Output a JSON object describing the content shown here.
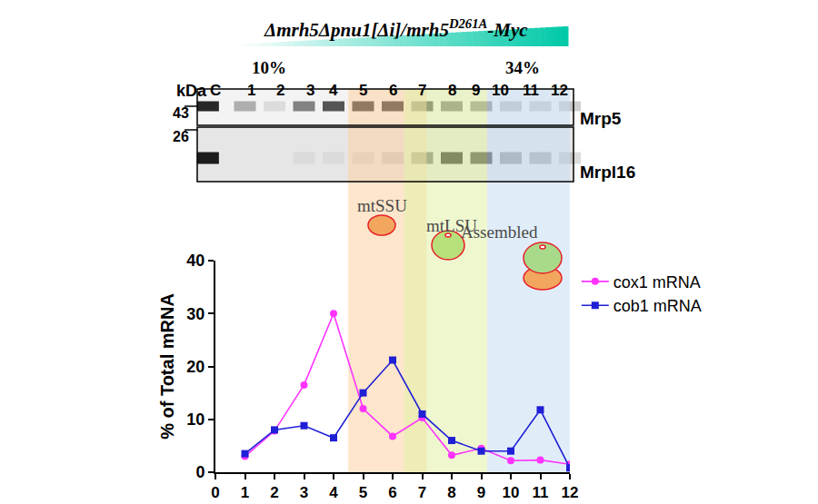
{
  "chart_data": {
    "type": "line",
    "x": [
      1,
      2,
      3,
      4,
      5,
      6,
      7,
      8,
      9,
      10,
      11,
      12
    ],
    "series": [
      {
        "name": "cox1 mRNA",
        "color": "#ff33ff",
        "marker": "circle",
        "values": [
          3,
          7.8,
          16.5,
          30,
          12,
          6.8,
          10.3,
          3.2,
          4.5,
          2.2,
          2.3,
          1.5
        ]
      },
      {
        "name": "cob1 mRNA",
        "color": "#1f1fd6",
        "marker": "square",
        "values": [
          3.5,
          8,
          8.8,
          6.5,
          15,
          21.2,
          11,
          6,
          4,
          4,
          11.8,
          0.8
        ]
      }
    ],
    "xlim": [
      0,
      12
    ],
    "xticks": [
      0,
      1,
      2,
      3,
      4,
      5,
      6,
      7,
      8,
      9,
      10,
      11,
      12
    ],
    "ylim": [
      0,
      40
    ],
    "yticks": [
      0,
      10,
      20,
      30,
      40
    ],
    "y_label": "% of Total mRNA",
    "legend": "right",
    "grid": false,
    "regions": [
      {
        "label": "mtSSU",
        "x": [
          4.5,
          7.15
        ],
        "color": "#fbd2a0"
      },
      {
        "label": "mtLSU",
        "x": [
          6.4,
          9.2
        ],
        "color": "#e2f0a8"
      },
      {
        "label": "Assembled",
        "x": [
          9.2,
          12
        ],
        "color": "#c6def2"
      }
    ]
  },
  "blot": {
    "strain": {
      "text": "Δmrh5Δpnu1[Δi]/mrh5",
      "sup": "D261A",
      "tail": "-Myc"
    },
    "gradient": [
      "10%",
      "34%"
    ],
    "unit": "kDa",
    "markers": [
      43,
      26
    ],
    "lanes": [
      "C",
      "1",
      "2",
      "3",
      "4",
      "5",
      "6",
      "7",
      "8",
      "9",
      "10",
      "11",
      "12"
    ],
    "rows": [
      {
        "label": "Mrp5",
        "intensity": [
          0.9,
          0.3,
          0.1,
          0.5,
          0.7,
          1,
          1,
          0.8,
          0.6,
          0.5,
          0.25,
          0.2,
          0.2
        ]
      },
      {
        "label": "Mrpl16",
        "intensity": [
          0.95,
          0,
          0,
          0.05,
          0.05,
          0.1,
          0.15,
          0.6,
          1,
          0.85,
          0.4,
          0.3,
          0.15
        ]
      }
    ]
  }
}
